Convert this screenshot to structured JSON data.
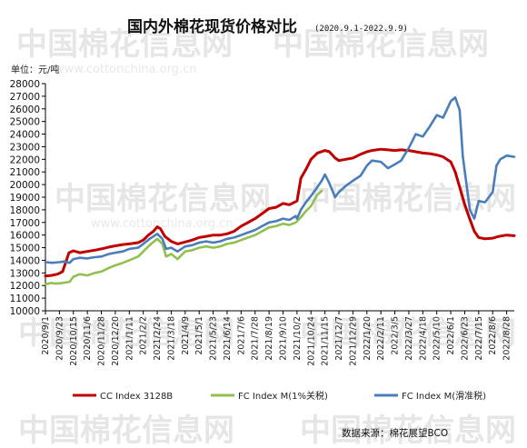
{
  "chart_data": {
    "type": "line",
    "title": "国内外棉花现货价格对比",
    "subtitle": "(2020.9.1-2022.9.9)",
    "unit": "单位：元/吨",
    "source": "数据来源：棉花展望BCO",
    "watermark": "中国棉花信息网 www.cottonchina.org.cn",
    "ylim": [
      10000,
      28000
    ],
    "y_ticks": [
      10000,
      11000,
      12000,
      13000,
      14000,
      15000,
      16000,
      17000,
      18000,
      19000,
      20000,
      21000,
      22000,
      23000,
      24000,
      25000,
      26000,
      27000,
      28000
    ],
    "x_ticks": [
      "2020/9/1",
      "2020/9/23",
      "2020/10/15",
      "2020/11/6",
      "2020/11/28",
      "2020/12/20",
      "2021/1/11",
      "2021/2/2",
      "2021/2/24",
      "2021/3/18",
      "2021/4/9",
      "2021/5/1",
      "2021/5/23",
      "2021/6/14",
      "2021/7/6",
      "2021/7/28",
      "2021/8/19",
      "2021/9/10",
      "2021/10/2",
      "2021/10/24",
      "2021/11/15",
      "2021/12/7",
      "2021/12/29",
      "2022/1/20",
      "2022/2/11",
      "2022/3/5",
      "2022/3/27",
      "2022/4/18",
      "2022/5/10",
      "2022/6/1",
      "2022/6/23",
      "2022/7/15",
      "2022/8/6",
      "2022/8/28"
    ],
    "x_start": "2020/9/1",
    "x_end": "2022/9/9",
    "legend_position": "bottom",
    "series": [
      {
        "name": "CC Index 3128B",
        "color": "#c00000",
        "points": [
          [
            "2020/9/1",
            12750
          ],
          [
            "2020/9/10",
            12800
          ],
          [
            "2020/9/20",
            12900
          ],
          [
            "2020/9/28",
            13100
          ],
          [
            "2020/10/8",
            14600
          ],
          [
            "2020/10/15",
            14750
          ],
          [
            "2020/10/25",
            14600
          ],
          [
            "2020/11/6",
            14700
          ],
          [
            "2020/11/18",
            14800
          ],
          [
            "2020/11/28",
            14900
          ],
          [
            "2020/12/10",
            15050
          ],
          [
            "2020/12/20",
            15150
          ],
          [
            "2021/1/1",
            15250
          ],
          [
            "2021/1/11",
            15300
          ],
          [
            "2021/1/25",
            15400
          ],
          [
            "2021/2/2",
            15600
          ],
          [
            "2021/2/10",
            16000
          ],
          [
            "2021/2/18",
            16300
          ],
          [
            "2021/2/24",
            16650
          ],
          [
            "2021/3/1",
            16500
          ],
          [
            "2021/3/8",
            15900
          ],
          [
            "2021/3/18",
            15500
          ],
          [
            "2021/3/28",
            15300
          ],
          [
            "2021/4/9",
            15450
          ],
          [
            "2021/4/20",
            15600
          ],
          [
            "2021/5/1",
            15800
          ],
          [
            "2021/5/12",
            15900
          ],
          [
            "2021/5/23",
            16000
          ],
          [
            "2021/6/3",
            16000
          ],
          [
            "2021/6/14",
            16100
          ],
          [
            "2021/6/25",
            16300
          ],
          [
            "2021/7/6",
            16700
          ],
          [
            "2021/7/17",
            17000
          ],
          [
            "2021/7/28",
            17300
          ],
          [
            "2021/8/8",
            17700
          ],
          [
            "2021/8/19",
            18100
          ],
          [
            "2021/8/30",
            18200
          ],
          [
            "2021/9/10",
            18500
          ],
          [
            "2021/9/20",
            18400
          ],
          [
            "2021/10/2",
            18700
          ],
          [
            "2021/10/8",
            20500
          ],
          [
            "2021/10/16",
            21200
          ],
          [
            "2021/10/24",
            22000
          ],
          [
            "2021/11/3",
            22500
          ],
          [
            "2021/11/15",
            22700
          ],
          [
            "2021/11/22",
            22600
          ],
          [
            "2021/12/1",
            22100
          ],
          [
            "2021/12/7",
            21900
          ],
          [
            "2021/12/18",
            22000
          ],
          [
            "2021/12/29",
            22100
          ],
          [
            "2022/1/10",
            22400
          ],
          [
            "2022/1/20",
            22600
          ],
          [
            "2022/1/28",
            22700
          ],
          [
            "2022/2/11",
            22800
          ],
          [
            "2022/2/22",
            22750
          ],
          [
            "2022/3/5",
            22700
          ],
          [
            "2022/3/15",
            22750
          ],
          [
            "2022/3/27",
            22700
          ],
          [
            "2022/4/7",
            22600
          ],
          [
            "2022/4/18",
            22500
          ],
          [
            "2022/4/29",
            22450
          ],
          [
            "2022/5/10",
            22350
          ],
          [
            "2022/5/20",
            22200
          ],
          [
            "2022/6/1",
            21800
          ],
          [
            "2022/6/8",
            21000
          ],
          [
            "2022/6/15",
            19800
          ],
          [
            "2022/6/23",
            18400
          ],
          [
            "2022/6/30",
            17400
          ],
          [
            "2022/7/8",
            16300
          ],
          [
            "2022/7/15",
            15800
          ],
          [
            "2022/7/25",
            15700
          ],
          [
            "2022/8/6",
            15750
          ],
          [
            "2022/8/16",
            15900
          ],
          [
            "2022/8/28",
            16000
          ],
          [
            "2022/9/9",
            15950
          ]
        ]
      },
      {
        "name": "FC Index M(1%关税)",
        "color": "#92c050",
        "points": [
          [
            "2020/9/1",
            12100
          ],
          [
            "2020/9/10",
            12200
          ],
          [
            "2020/9/18",
            12150
          ],
          [
            "2020/9/28",
            12200
          ],
          [
            "2020/10/9",
            12300
          ],
          [
            "2020/10/15",
            12700
          ],
          [
            "2020/10/25",
            12900
          ],
          [
            "2020/11/6",
            12800
          ],
          [
            "2020/11/18",
            13000
          ],
          [
            "2020/11/28",
            13100
          ],
          [
            "2020/12/10",
            13400
          ],
          [
            "2020/12/20",
            13600
          ],
          [
            "2021/1/1",
            13800
          ],
          [
            "2021/1/11",
            14000
          ],
          [
            "2021/1/25",
            14300
          ],
          [
            "2021/2/2",
            14700
          ],
          [
            "2021/2/12",
            15200
          ],
          [
            "2021/2/24",
            15700
          ],
          [
            "2021/3/4",
            15300
          ],
          [
            "2021/3/10",
            14300
          ],
          [
            "2021/3/18",
            14500
          ],
          [
            "2021/3/28",
            14100
          ],
          [
            "2021/4/9",
            14700
          ],
          [
            "2021/4/20",
            14800
          ],
          [
            "2021/5/1",
            15000
          ],
          [
            "2021/5/12",
            15100
          ],
          [
            "2021/5/23",
            15000
          ],
          [
            "2021/6/3",
            15100
          ],
          [
            "2021/6/14",
            15300
          ],
          [
            "2021/6/25",
            15400
          ],
          [
            "2021/7/6",
            15600
          ],
          [
            "2021/7/17",
            15800
          ],
          [
            "2021/7/28",
            16000
          ],
          [
            "2021/8/8",
            16300
          ],
          [
            "2021/8/19",
            16600
          ],
          [
            "2021/8/30",
            16700
          ],
          [
            "2021/9/10",
            16900
          ],
          [
            "2021/9/20",
            16800
          ],
          [
            "2021/9/30",
            17000
          ],
          [
            "2021/10/8",
            17400
          ],
          [
            "2021/10/16",
            17900
          ],
          [
            "2021/10/24",
            18300
          ],
          [
            "2021/11/3",
            19200
          ],
          [
            "2021/11/10",
            19500
          ]
        ]
      },
      {
        "name": "FC Index M(滑准税)",
        "color": "#4a7ebb",
        "points": [
          [
            "2020/9/1",
            13850
          ],
          [
            "2020/9/12",
            13800
          ],
          [
            "2020/9/23",
            13850
          ],
          [
            "2020/9/30",
            13900
          ],
          [
            "2020/10/9",
            13800
          ],
          [
            "2020/10/15",
            14100
          ],
          [
            "2020/10/25",
            14200
          ],
          [
            "2020/11/6",
            14150
          ],
          [
            "2020/11/18",
            14250
          ],
          [
            "2020/11/28",
            14300
          ],
          [
            "2020/12/10",
            14500
          ],
          [
            "2020/12/20",
            14600
          ],
          [
            "2021/1/1",
            14700
          ],
          [
            "2021/1/11",
            14900
          ],
          [
            "2021/1/25",
            15000
          ],
          [
            "2021/2/2",
            15300
          ],
          [
            "2021/2/12",
            15700
          ],
          [
            "2021/2/24",
            16100
          ],
          [
            "2021/3/4",
            15700
          ],
          [
            "2021/3/10",
            14900
          ],
          [
            "2021/3/18",
            15000
          ],
          [
            "2021/3/28",
            14700
          ],
          [
            "2021/4/9",
            15100
          ],
          [
            "2021/4/20",
            15200
          ],
          [
            "2021/5/1",
            15400
          ],
          [
            "2021/5/12",
            15500
          ],
          [
            "2021/5/23",
            15400
          ],
          [
            "2021/6/3",
            15500
          ],
          [
            "2021/6/14",
            15700
          ],
          [
            "2021/6/25",
            15800
          ],
          [
            "2021/7/6",
            16000
          ],
          [
            "2021/7/17",
            16200
          ],
          [
            "2021/7/28",
            16400
          ],
          [
            "2021/8/8",
            16700
          ],
          [
            "2021/8/19",
            17000
          ],
          [
            "2021/8/30",
            17100
          ],
          [
            "2021/9/10",
            17300
          ],
          [
            "2021/9/20",
            17200
          ],
          [
            "2021/9/30",
            17500
          ],
          [
            "2021/10/2",
            17300
          ],
          [
            "2021/10/8",
            18000
          ],
          [
            "2021/10/16",
            18600
          ],
          [
            "2021/10/24",
            19100
          ],
          [
            "2021/11/3",
            19800
          ],
          [
            "2021/11/10",
            20300
          ],
          [
            "2021/11/15",
            20800
          ],
          [
            "2021/11/22",
            20100
          ],
          [
            "2021/12/1",
            19000
          ],
          [
            "2021/12/7",
            19400
          ],
          [
            "2021/12/18",
            19900
          ],
          [
            "2021/12/29",
            20300
          ],
          [
            "2022/1/10",
            20700
          ],
          [
            "2022/1/20",
            21500
          ],
          [
            "2022/1/28",
            21900
          ],
          [
            "2022/2/11",
            21800
          ],
          [
            "2022/2/22",
            21300
          ],
          [
            "2022/3/5",
            21600
          ],
          [
            "2022/3/15",
            21900
          ],
          [
            "2022/3/27",
            22900
          ],
          [
            "2022/4/7",
            24000
          ],
          [
            "2022/4/18",
            23800
          ],
          [
            "2022/4/29",
            24600
          ],
          [
            "2022/5/10",
            25500
          ],
          [
            "2022/5/20",
            25300
          ],
          [
            "2022/6/1",
            26600
          ],
          [
            "2022/6/8",
            26900
          ],
          [
            "2022/6/15",
            25900
          ],
          [
            "2022/6/20",
            22200
          ],
          [
            "2022/6/25",
            20300
          ],
          [
            "2022/7/1",
            18000
          ],
          [
            "2022/7/8",
            17300
          ],
          [
            "2022/7/15",
            18700
          ],
          [
            "2022/7/25",
            18600
          ],
          [
            "2022/8/6",
            19400
          ],
          [
            "2022/8/12",
            21500
          ],
          [
            "2022/8/18",
            22000
          ],
          [
            "2022/8/28",
            22300
          ],
          [
            "2022/9/9",
            22200
          ]
        ]
      }
    ]
  }
}
